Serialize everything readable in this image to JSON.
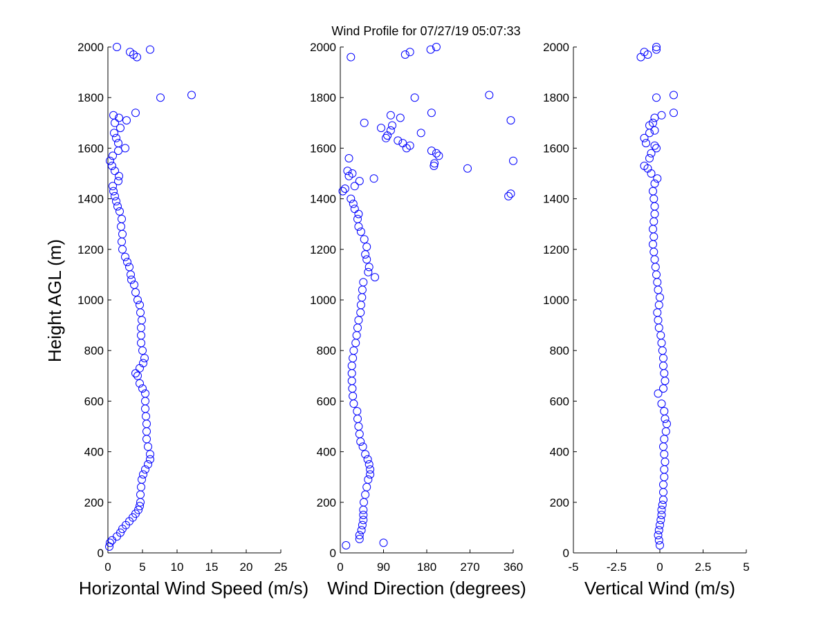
{
  "title": "Wind Profile for  07/27/19 05:07:33",
  "colors": {
    "marker": "#0000ff",
    "axis": "#000000",
    "background": "#ffffff"
  },
  "chart_data": [
    {
      "type": "scatter",
      "xlabel": "Horizontal Wind Speed (m/s)",
      "ylabel": "Height AGL (m)",
      "xlim": [
        0,
        25
      ],
      "ylim": [
        0,
        2000
      ],
      "xticks": [
        "0",
        "5",
        "10",
        "15",
        "20",
        "25"
      ],
      "yticks": [
        "0",
        "200",
        "400",
        "600",
        "800",
        "1000",
        "1200",
        "1400",
        "1600",
        "1800",
        "2000"
      ],
      "grid": false,
      "points": [
        [
          0.2,
          25
        ],
        [
          0.3,
          40
        ],
        [
          0.6,
          50
        ],
        [
          1.3,
          65
        ],
        [
          1.8,
          80
        ],
        [
          2.1,
          95
        ],
        [
          2.6,
          110
        ],
        [
          3.1,
          125
        ],
        [
          3.6,
          140
        ],
        [
          4.0,
          155
        ],
        [
          4.4,
          170
        ],
        [
          4.6,
          185
        ],
        [
          4.7,
          200
        ],
        [
          4.7,
          230
        ],
        [
          4.8,
          260
        ],
        [
          4.9,
          290
        ],
        [
          5.1,
          310
        ],
        [
          5.4,
          330
        ],
        [
          5.8,
          350
        ],
        [
          6.1,
          370
        ],
        [
          6.1,
          390
        ],
        [
          5.8,
          420
        ],
        [
          5.6,
          450
        ],
        [
          5.6,
          480
        ],
        [
          5.6,
          510
        ],
        [
          5.5,
          540
        ],
        [
          5.4,
          570
        ],
        [
          5.4,
          600
        ],
        [
          5.4,
          630
        ],
        [
          5.0,
          650
        ],
        [
          4.6,
          670
        ],
        [
          4.3,
          700
        ],
        [
          4.0,
          710
        ],
        [
          4.6,
          730
        ],
        [
          5.1,
          750
        ],
        [
          5.3,
          770
        ],
        [
          5.0,
          800
        ],
        [
          4.8,
          830
        ],
        [
          4.8,
          860
        ],
        [
          4.8,
          890
        ],
        [
          4.9,
          920
        ],
        [
          4.7,
          950
        ],
        [
          4.6,
          980
        ],
        [
          4.3,
          1000
        ],
        [
          4.0,
          1030
        ],
        [
          3.8,
          1060
        ],
        [
          3.4,
          1080
        ],
        [
          3.3,
          1100
        ],
        [
          3.1,
          1130
        ],
        [
          2.8,
          1150
        ],
        [
          2.5,
          1170
        ],
        [
          2.1,
          1200
        ],
        [
          2.0,
          1230
        ],
        [
          2.1,
          1260
        ],
        [
          1.9,
          1290
        ],
        [
          2.0,
          1320
        ],
        [
          1.7,
          1350
        ],
        [
          1.4,
          1370
        ],
        [
          1.2,
          1390
        ],
        [
          1.0,
          1410
        ],
        [
          0.8,
          1430
        ],
        [
          0.7,
          1450
        ],
        [
          1.5,
          1470
        ],
        [
          1.6,
          1490
        ],
        [
          1.0,
          1510
        ],
        [
          0.6,
          1530
        ],
        [
          0.3,
          1550
        ],
        [
          0.7,
          1570
        ],
        [
          1.5,
          1590
        ],
        [
          2.5,
          1600
        ],
        [
          1.5,
          1620
        ],
        [
          1.2,
          1640
        ],
        [
          0.9,
          1660
        ],
        [
          1.8,
          1680
        ],
        [
          1.0,
          1700
        ],
        [
          2.7,
          1710
        ],
        [
          1.6,
          1720
        ],
        [
          0.8,
          1730
        ],
        [
          4.0,
          1740
        ],
        [
          7.6,
          1800
        ],
        [
          12.1,
          1810
        ],
        [
          4.2,
          1960
        ],
        [
          3.7,
          1970
        ],
        [
          3.2,
          1980
        ],
        [
          6.1,
          1990
        ],
        [
          1.3,
          2000
        ]
      ]
    },
    {
      "type": "scatter",
      "xlabel": "Wind Direction (degrees)",
      "ylabel": "",
      "xlim": [
        0,
        360
      ],
      "ylim": [
        0,
        2000
      ],
      "xticks": [
        "0",
        "90",
        "180",
        "270",
        "360"
      ],
      "yticks": [
        "0",
        "200",
        "400",
        "600",
        "800",
        "1000",
        "1200",
        "1400",
        "1600",
        "1800",
        "2000"
      ],
      "grid": false,
      "points": [
        [
          12,
          30
        ],
        [
          90,
          40
        ],
        [
          40,
          55
        ],
        [
          40,
          70
        ],
        [
          44,
          90
        ],
        [
          46,
          110
        ],
        [
          48,
          130
        ],
        [
          48,
          150
        ],
        [
          48,
          170
        ],
        [
          49,
          200
        ],
        [
          52,
          230
        ],
        [
          55,
          260
        ],
        [
          58,
          290
        ],
        [
          62,
          310
        ],
        [
          62,
          330
        ],
        [
          60,
          350
        ],
        [
          57,
          370
        ],
        [
          52,
          390
        ],
        [
          47,
          420
        ],
        [
          42,
          440
        ],
        [
          40,
          470
        ],
        [
          38,
          500
        ],
        [
          36,
          530
        ],
        [
          35,
          560
        ],
        [
          28,
          590
        ],
        [
          26,
          620
        ],
        [
          25,
          650
        ],
        [
          24,
          680
        ],
        [
          24,
          710
        ],
        [
          24,
          740
        ],
        [
          26,
          770
        ],
        [
          28,
          800
        ],
        [
          32,
          830
        ],
        [
          34,
          860
        ],
        [
          36,
          890
        ],
        [
          38,
          920
        ],
        [
          42,
          950
        ],
        [
          43,
          980
        ],
        [
          45,
          1010
        ],
        [
          46,
          1040
        ],
        [
          48,
          1070
        ],
        [
          72,
          1090
        ],
        [
          58,
          1110
        ],
        [
          60,
          1130
        ],
        [
          55,
          1160
        ],
        [
          52,
          1180
        ],
        [
          55,
          1210
        ],
        [
          50,
          1240
        ],
        [
          43,
          1270
        ],
        [
          38,
          1290
        ],
        [
          36,
          1320
        ],
        [
          38,
          1340
        ],
        [
          30,
          1360
        ],
        [
          27,
          1380
        ],
        [
          22,
          1400
        ],
        [
          350,
          1410
        ],
        [
          355,
          1420
        ],
        [
          5,
          1430
        ],
        [
          10,
          1440
        ],
        [
          30,
          1450
        ],
        [
          40,
          1470
        ],
        [
          70,
          1480
        ],
        [
          18,
          1490
        ],
        [
          25,
          1500
        ],
        [
          15,
          1510
        ],
        [
          265,
          1520
        ],
        [
          195,
          1530
        ],
        [
          196,
          1540
        ],
        [
          360,
          1550
        ],
        [
          18,
          1560
        ],
        [
          205,
          1570
        ],
        [
          200,
          1580
        ],
        [
          190,
          1590
        ],
        [
          138,
          1600
        ],
        [
          145,
          1610
        ],
        [
          130,
          1620
        ],
        [
          120,
          1630
        ],
        [
          95,
          1640
        ],
        [
          98,
          1650
        ],
        [
          168,
          1660
        ],
        [
          105,
          1670
        ],
        [
          85,
          1680
        ],
        [
          108,
          1690
        ],
        [
          50,
          1700
        ],
        [
          355,
          1710
        ],
        [
          125,
          1720
        ],
        [
          105,
          1730
        ],
        [
          190,
          1740
        ],
        [
          155,
          1800
        ],
        [
          310,
          1810
        ],
        [
          22,
          1960
        ],
        [
          135,
          1970
        ],
        [
          145,
          1980
        ],
        [
          188,
          1990
        ],
        [
          200,
          2000
        ]
      ]
    },
    {
      "type": "scatter",
      "xlabel": "Vertical Wind (m/s)",
      "ylabel": "",
      "xlim": [
        -5,
        5
      ],
      "ylim": [
        0,
        2000
      ],
      "xticks": [
        "-5",
        "-2.5",
        "0",
        "2.5",
        "5"
      ],
      "yticks": [
        "0",
        "200",
        "400",
        "600",
        "800",
        "1000",
        "1200",
        "1400",
        "1600",
        "1800",
        "2000"
      ],
      "grid": false,
      "points": [
        [
          0.0,
          30
        ],
        [
          -0.05,
          50
        ],
        [
          -0.1,
          70
        ],
        [
          -0.05,
          90
        ],
        [
          0.0,
          110
        ],
        [
          0.05,
          130
        ],
        [
          0.1,
          150
        ],
        [
          0.1,
          170
        ],
        [
          0.15,
          190
        ],
        [
          0.2,
          210
        ],
        [
          0.2,
          240
        ],
        [
          0.2,
          270
        ],
        [
          0.25,
          300
        ],
        [
          0.25,
          330
        ],
        [
          0.3,
          360
        ],
        [
          0.25,
          390
        ],
        [
          0.2,
          420
        ],
        [
          0.25,
          450
        ],
        [
          0.35,
          480
        ],
        [
          0.4,
          510
        ],
        [
          0.3,
          530
        ],
        [
          0.25,
          560
        ],
        [
          0.1,
          590
        ],
        [
          -0.1,
          630
        ],
        [
          0.2,
          650
        ],
        [
          0.3,
          680
        ],
        [
          0.25,
          710
        ],
        [
          0.2,
          740
        ],
        [
          0.2,
          770
        ],
        [
          0.15,
          800
        ],
        [
          0.1,
          830
        ],
        [
          0.05,
          860
        ],
        [
          -0.05,
          890
        ],
        [
          -0.1,
          920
        ],
        [
          -0.15,
          950
        ],
        [
          -0.05,
          980
        ],
        [
          0.0,
          1010
        ],
        [
          -0.1,
          1040
        ],
        [
          -0.15,
          1070
        ],
        [
          -0.2,
          1100
        ],
        [
          -0.25,
          1130
        ],
        [
          -0.3,
          1160
        ],
        [
          -0.35,
          1190
        ],
        [
          -0.4,
          1220
        ],
        [
          -0.35,
          1250
        ],
        [
          -0.4,
          1280
        ],
        [
          -0.35,
          1310
        ],
        [
          -0.3,
          1340
        ],
        [
          -0.3,
          1370
        ],
        [
          -0.35,
          1400
        ],
        [
          -0.4,
          1430
        ],
        [
          -0.3,
          1460
        ],
        [
          -0.15,
          1480
        ],
        [
          -0.5,
          1500
        ],
        [
          -0.7,
          1520
        ],
        [
          -0.9,
          1530
        ],
        [
          -0.6,
          1560
        ],
        [
          -0.5,
          1580
        ],
        [
          -0.2,
          1600
        ],
        [
          -0.3,
          1610
        ],
        [
          -0.8,
          1620
        ],
        [
          -0.9,
          1640
        ],
        [
          -0.6,
          1660
        ],
        [
          -0.3,
          1670
        ],
        [
          -0.6,
          1690
        ],
        [
          -0.4,
          1700
        ],
        [
          -0.3,
          1720
        ],
        [
          0.1,
          1730
        ],
        [
          0.8,
          1740
        ],
        [
          -0.2,
          1800
        ],
        [
          0.8,
          1810
        ],
        [
          -1.1,
          1960
        ],
        [
          -0.7,
          1970
        ],
        [
          -0.9,
          1980
        ],
        [
          -0.2,
          1990
        ],
        [
          -0.2,
          2000
        ]
      ]
    }
  ]
}
